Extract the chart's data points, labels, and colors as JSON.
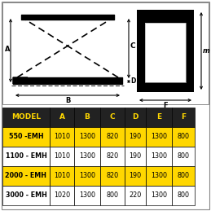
{
  "table_header": [
    "MODEL",
    "A",
    "B",
    "C",
    "D",
    "E",
    "F"
  ],
  "table_rows": [
    [
      "550 -EMH",
      "1010",
      "1300",
      "820",
      "190",
      "1300",
      "800"
    ],
    [
      "1100 - EMH",
      "1010",
      "1300",
      "820",
      "190",
      "1300",
      "800"
    ],
    [
      "2000 - EMH",
      "1010",
      "1300",
      "820",
      "190",
      "1300",
      "800"
    ],
    [
      "3000 - EMH",
      "1020",
      "1300",
      "800",
      "220",
      "1300",
      "800"
    ]
  ],
  "row_colors": [
    "#FFD700",
    "#FFFFFF",
    "#FFD700",
    "#FFFFFF"
  ],
  "header_bg": "#222222",
  "header_fg": "#FFD700",
  "data_fg": "#000000",
  "background_color": "#FFFFFF",
  "outer_border": "#000000"
}
